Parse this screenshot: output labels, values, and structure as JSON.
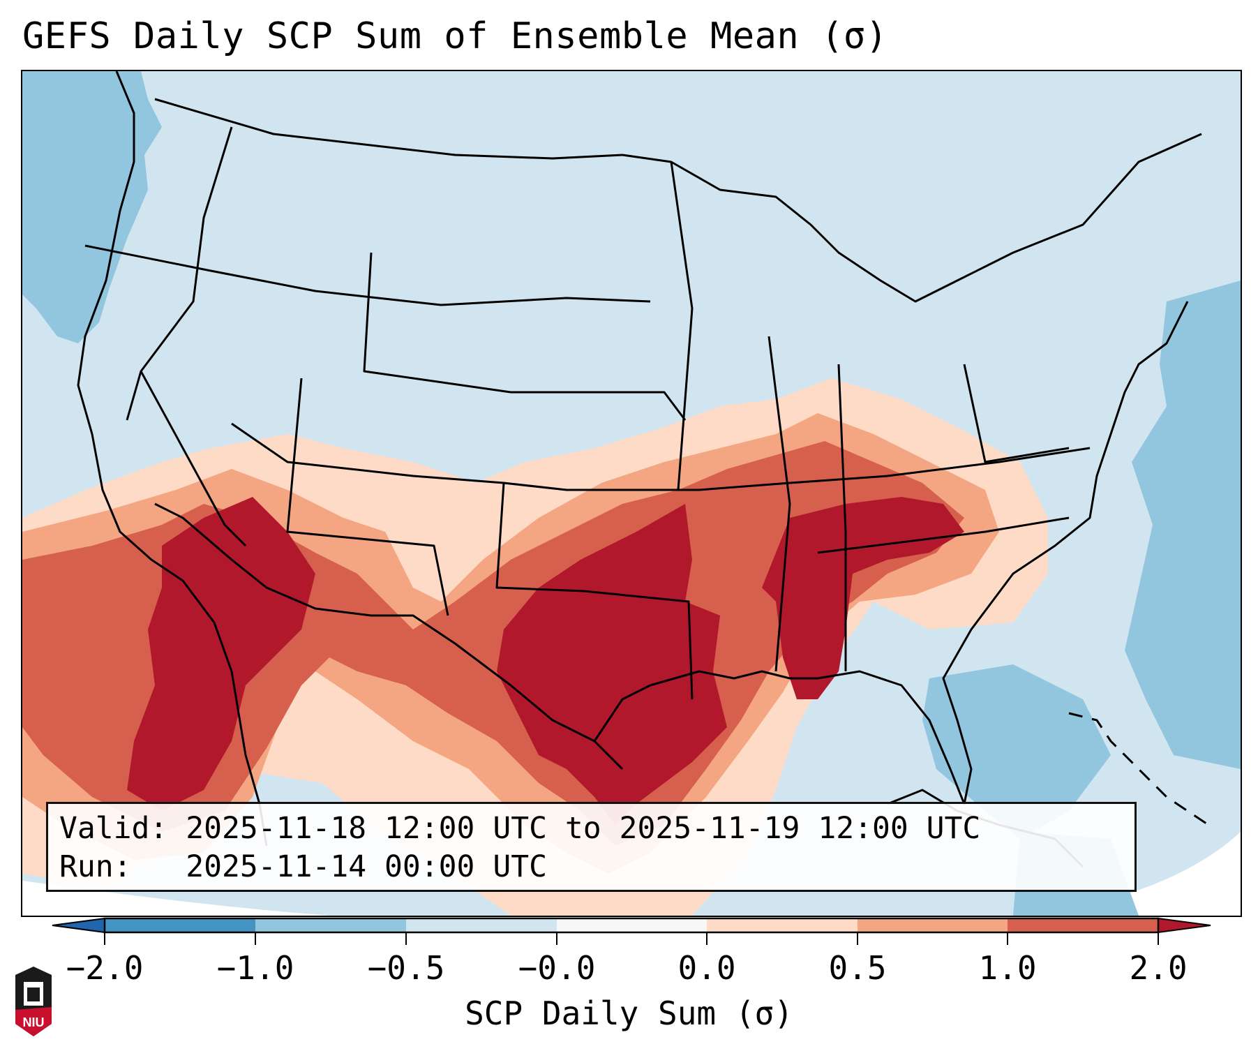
{
  "title": "GEFS Daily SCP Sum of Ensemble Mean (σ)",
  "info_box": {
    "valid_label": "Valid:",
    "valid_value": "2025-11-18 12:00 UTC to 2025-11-19 12:00 UTC",
    "run_label": "Run:",
    "run_value": "2025-11-14 00:00 UTC"
  },
  "colorbar": {
    "label": "SCP Daily Sum (σ)",
    "ticks": [
      "−2.0",
      "−1.0",
      "−0.5",
      "−0.0",
      "0.0",
      "0.5",
      "1.0",
      "2.0"
    ],
    "bins": [
      {
        "range": "< -2.0",
        "color": "#2166ac"
      },
      {
        "range": "-2.0 to -1.0",
        "color": "#4393c3"
      },
      {
        "range": "-1.0 to -0.5",
        "color": "#92c5de"
      },
      {
        "range": "-0.5 to -0.0",
        "color": "#d1e5f0"
      },
      {
        "range": "-0.0 to 0.0",
        "color": "#f7f7f7"
      },
      {
        "range": "0.0 to 0.5",
        "color": "#fddbc7"
      },
      {
        "range": "0.5 to 1.0",
        "color": "#f4a582"
      },
      {
        "range": "1.0 to 2.0",
        "color": "#d6604d"
      },
      {
        "range": "> 2.0",
        "color": "#b2182b"
      }
    ],
    "extend": "both"
  },
  "map": {
    "region": "Contiguous United States",
    "projection": "Lambert Conformal",
    "background_value_color": "#d1e5f0",
    "highlights": [
      {
        "area": "Texas / Oklahoma",
        "level": "> 2.0"
      },
      {
        "area": "Kentucky / Tennessee / Alabama",
        "level": "> 2.0"
      },
      {
        "area": "Arizona / Baja California",
        "level": "> 2.0"
      },
      {
        "area": "Pacific Northwest offshore",
        "level": "-1.0 to -0.5"
      },
      {
        "area": "Western Atlantic",
        "level": "-1.0 to -0.5"
      }
    ]
  },
  "logo": {
    "text": "NIU"
  }
}
